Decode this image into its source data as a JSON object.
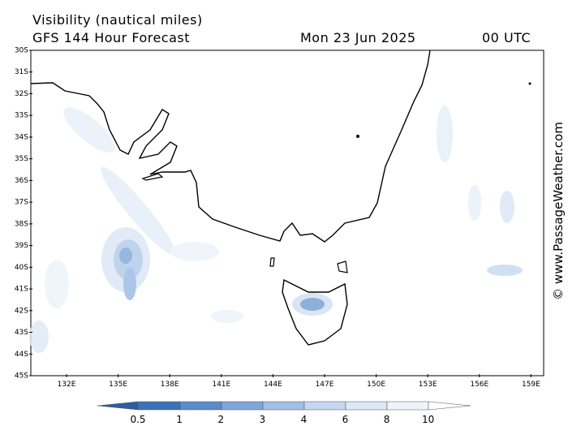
{
  "header": {
    "title": "Visibility (nautical miles)",
    "subtitle": "GFS 144 Hour Forecast",
    "date": "Mon 23 Jun 2025",
    "time": "00 UTC"
  },
  "map": {
    "lat_labels": [
      "30S",
      "31S",
      "32S",
      "33S",
      "34S",
      "35S",
      "36S",
      "37S",
      "38S",
      "39S",
      "40S",
      "41S",
      "42S",
      "43S",
      "44S",
      "45S"
    ],
    "lon_labels": [
      "132E",
      "135E",
      "138E",
      "141E",
      "144E",
      "147E",
      "150E",
      "153E",
      "156E",
      "159E"
    ]
  },
  "legend": {
    "labels": [
      "0.5",
      "1",
      "2",
      "3",
      "4",
      "6",
      "8",
      "10"
    ]
  },
  "credit": "© www.PassageWeather.com"
}
